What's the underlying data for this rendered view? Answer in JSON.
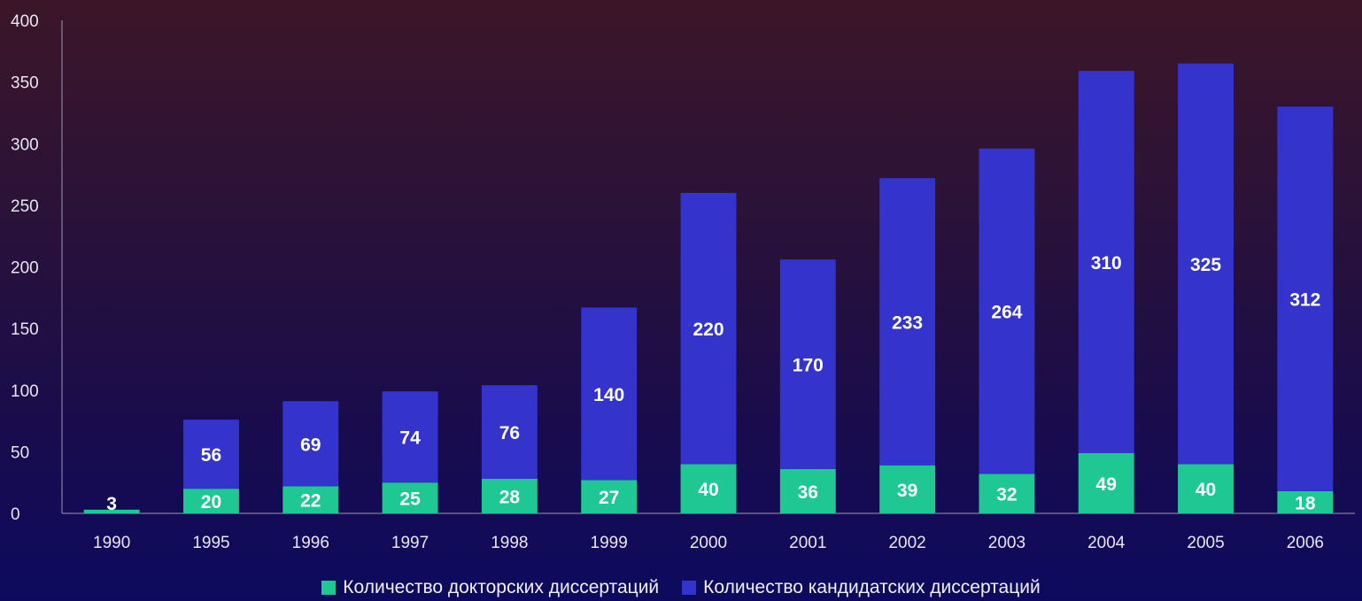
{
  "chart_data": {
    "type": "bar",
    "stacked": true,
    "categories": [
      "1990",
      "1995",
      "1996",
      "1997",
      "1998",
      "1999",
      "2000",
      "2001",
      "2002",
      "2003",
      "2004",
      "2005",
      "2006"
    ],
    "series": [
      {
        "name": "Количество докторских диссертаций",
        "color": "#1fc893",
        "values": [
          3,
          20,
          22,
          25,
          28,
          27,
          40,
          36,
          39,
          32,
          49,
          40,
          18
        ]
      },
      {
        "name": "Количество кандидатских диссертаций",
        "color": "#3434cc",
        "values": [
          0,
          56,
          69,
          74,
          76,
          140,
          220,
          170,
          233,
          264,
          310,
          325,
          312
        ]
      }
    ],
    "data_labels": [
      [
        "3",
        "20",
        "22",
        "25",
        "28",
        "27",
        "40",
        "36",
        "39",
        "32",
        "49",
        "40",
        "18"
      ],
      [
        "",
        "56",
        "69",
        "74",
        "76",
        "140",
        "220",
        "170",
        "233",
        "264",
        "310",
        "325",
        "312"
      ]
    ],
    "y_ticks": [
      "0",
      "50",
      "100",
      "150",
      "200",
      "250",
      "300",
      "350",
      "400"
    ],
    "ylim": [
      0,
      400
    ],
    "legend_position": "bottom",
    "grid": false
  }
}
